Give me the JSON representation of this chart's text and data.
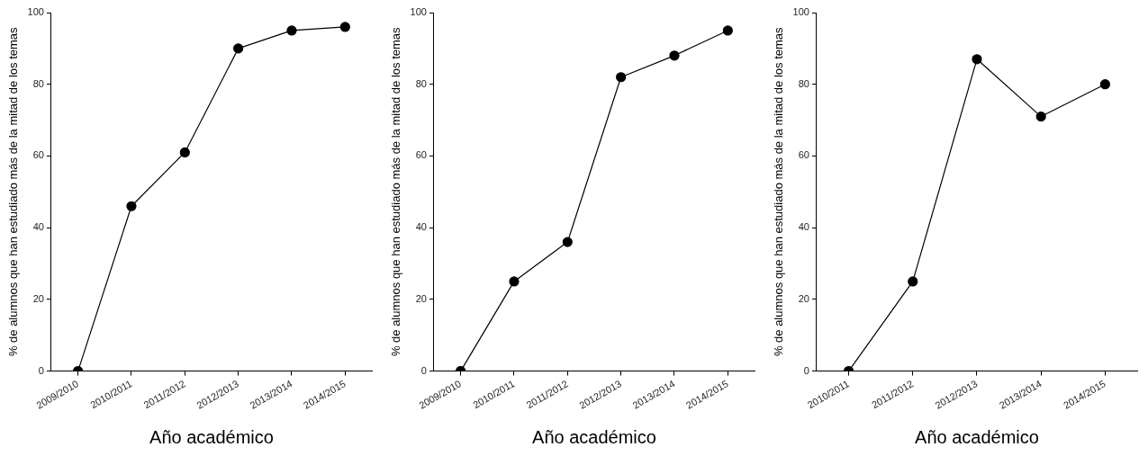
{
  "chart_data": [
    {
      "type": "line",
      "xlabel": "Año académico",
      "ylabel": "% de alumnos que han estudiado más de la mitad de los temas",
      "categories": [
        "2009/2010",
        "2010/2011",
        "2011/2012",
        "2012/2013",
        "2013/2014",
        "2014/2015"
      ],
      "series": [
        {
          "color": "#000000",
          "values": [
            0,
            46,
            61,
            90,
            95,
            96
          ]
        }
      ],
      "ylim": [
        0,
        100
      ],
      "yticks": [
        0,
        20,
        40,
        60,
        80,
        100
      ],
      "grid": false,
      "legend": false,
      "marker": "circle",
      "line_style": "solid"
    },
    {
      "type": "line",
      "xlabel": "Año académico",
      "ylabel": "% de alumnos que han estudiado más de la mitad de los temas",
      "categories": [
        "2009/2010",
        "2010/2011",
        "2011/2012",
        "2012/2013",
        "2013/2014",
        "2014/2015"
      ],
      "series": [
        {
          "color": "#000000",
          "values": [
            0,
            25,
            36,
            82,
            88,
            95
          ]
        }
      ],
      "ylim": [
        0,
        100
      ],
      "yticks": [
        0,
        20,
        40,
        60,
        80,
        100
      ],
      "grid": false,
      "legend": false,
      "marker": "circle",
      "line_style": "solid"
    },
    {
      "type": "line",
      "xlabel": "Año académico",
      "ylabel": "% de alumnos que han estudiado más de la mitad de los temas",
      "categories": [
        "2010/2011",
        "2011/2012",
        "2012/2013",
        "2013/2014",
        "2014/2015"
      ],
      "series": [
        {
          "color": "#000000",
          "values": [
            0,
            25,
            87,
            71,
            80
          ]
        }
      ],
      "ylim": [
        0,
        100
      ],
      "yticks": [
        0,
        20,
        40,
        60,
        80,
        100
      ],
      "grid": false,
      "legend": false,
      "marker": "circle",
      "line_style": "solid"
    }
  ]
}
